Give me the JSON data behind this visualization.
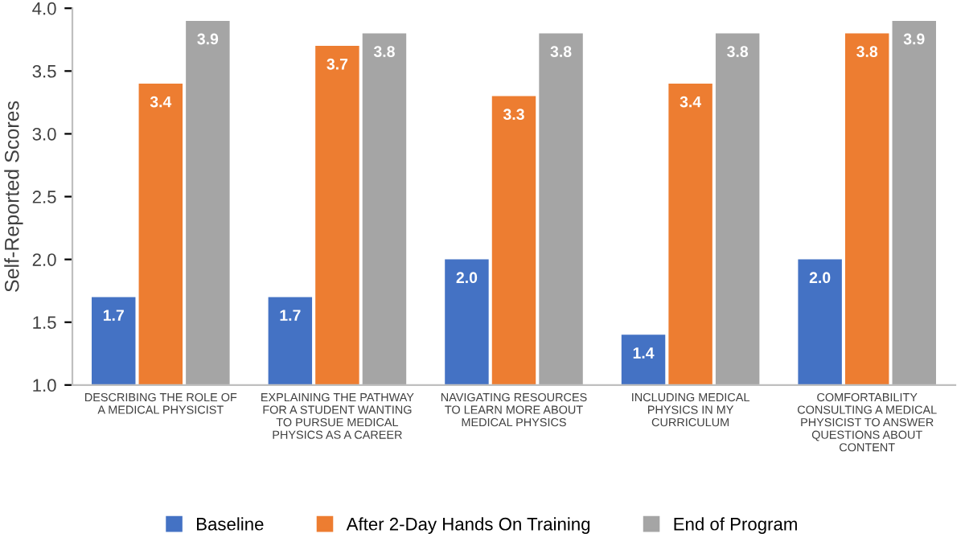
{
  "chart_data": {
    "type": "bar",
    "ylabel": "Self-Reported Scores",
    "categories": [
      "DESCRIBING THE ROLE OF A MEDICAL PHYSICIST",
      "EXPLAINING THE PATHWAY FOR A STUDENT WANTING TO PURSUE MEDICAL PHYSICS AS A CAREER",
      "NAVIGATING RESOURCES TO LEARN MORE ABOUT MEDICAL PHYSICS",
      "INCLUDING MEDICAL PHYSICS IN MY CURRICULUM",
      "COMFORTABILITY CONSULTING A MEDICAL PHYSICIST TO ANSWER QUESTIONS ABOUT CONTENT"
    ],
    "series": [
      {
        "name": "Baseline",
        "color": "#4472c4",
        "values": [
          1.7,
          1.7,
          2.0,
          1.4,
          2.0
        ],
        "value_labels": [
          "1.7",
          "1.7",
          "2.0",
          "1.4",
          "2.0"
        ]
      },
      {
        "name": "After 2-Day Hands On Training",
        "color": "#ed7d31",
        "values": [
          3.4,
          3.7,
          3.3,
          3.4,
          3.8
        ],
        "value_labels": [
          "3.4",
          "3.7",
          "3.3",
          "3.4",
          "3.8"
        ]
      },
      {
        "name": "End of Program",
        "color": "#a5a5a5",
        "values": [
          3.9,
          3.8,
          3.8,
          3.8,
          3.9
        ],
        "value_labels": [
          "3.9",
          "3.8",
          "3.8",
          "3.8",
          "3.9"
        ]
      }
    ],
    "ylim": [
      1.0,
      4.0
    ],
    "yticks": [
      {
        "value": 1.0,
        "label": "1.0"
      },
      {
        "value": 1.5,
        "label": "1.5"
      },
      {
        "value": 2.0,
        "label": "2.0"
      },
      {
        "value": 2.5,
        "label": "2.5"
      },
      {
        "value": 3.0,
        "label": "3.0"
      },
      {
        "value": 3.5,
        "label": "3.5"
      },
      {
        "value": 4.0,
        "label": "4.0"
      }
    ],
    "grid": false,
    "legend": "bottom"
  }
}
